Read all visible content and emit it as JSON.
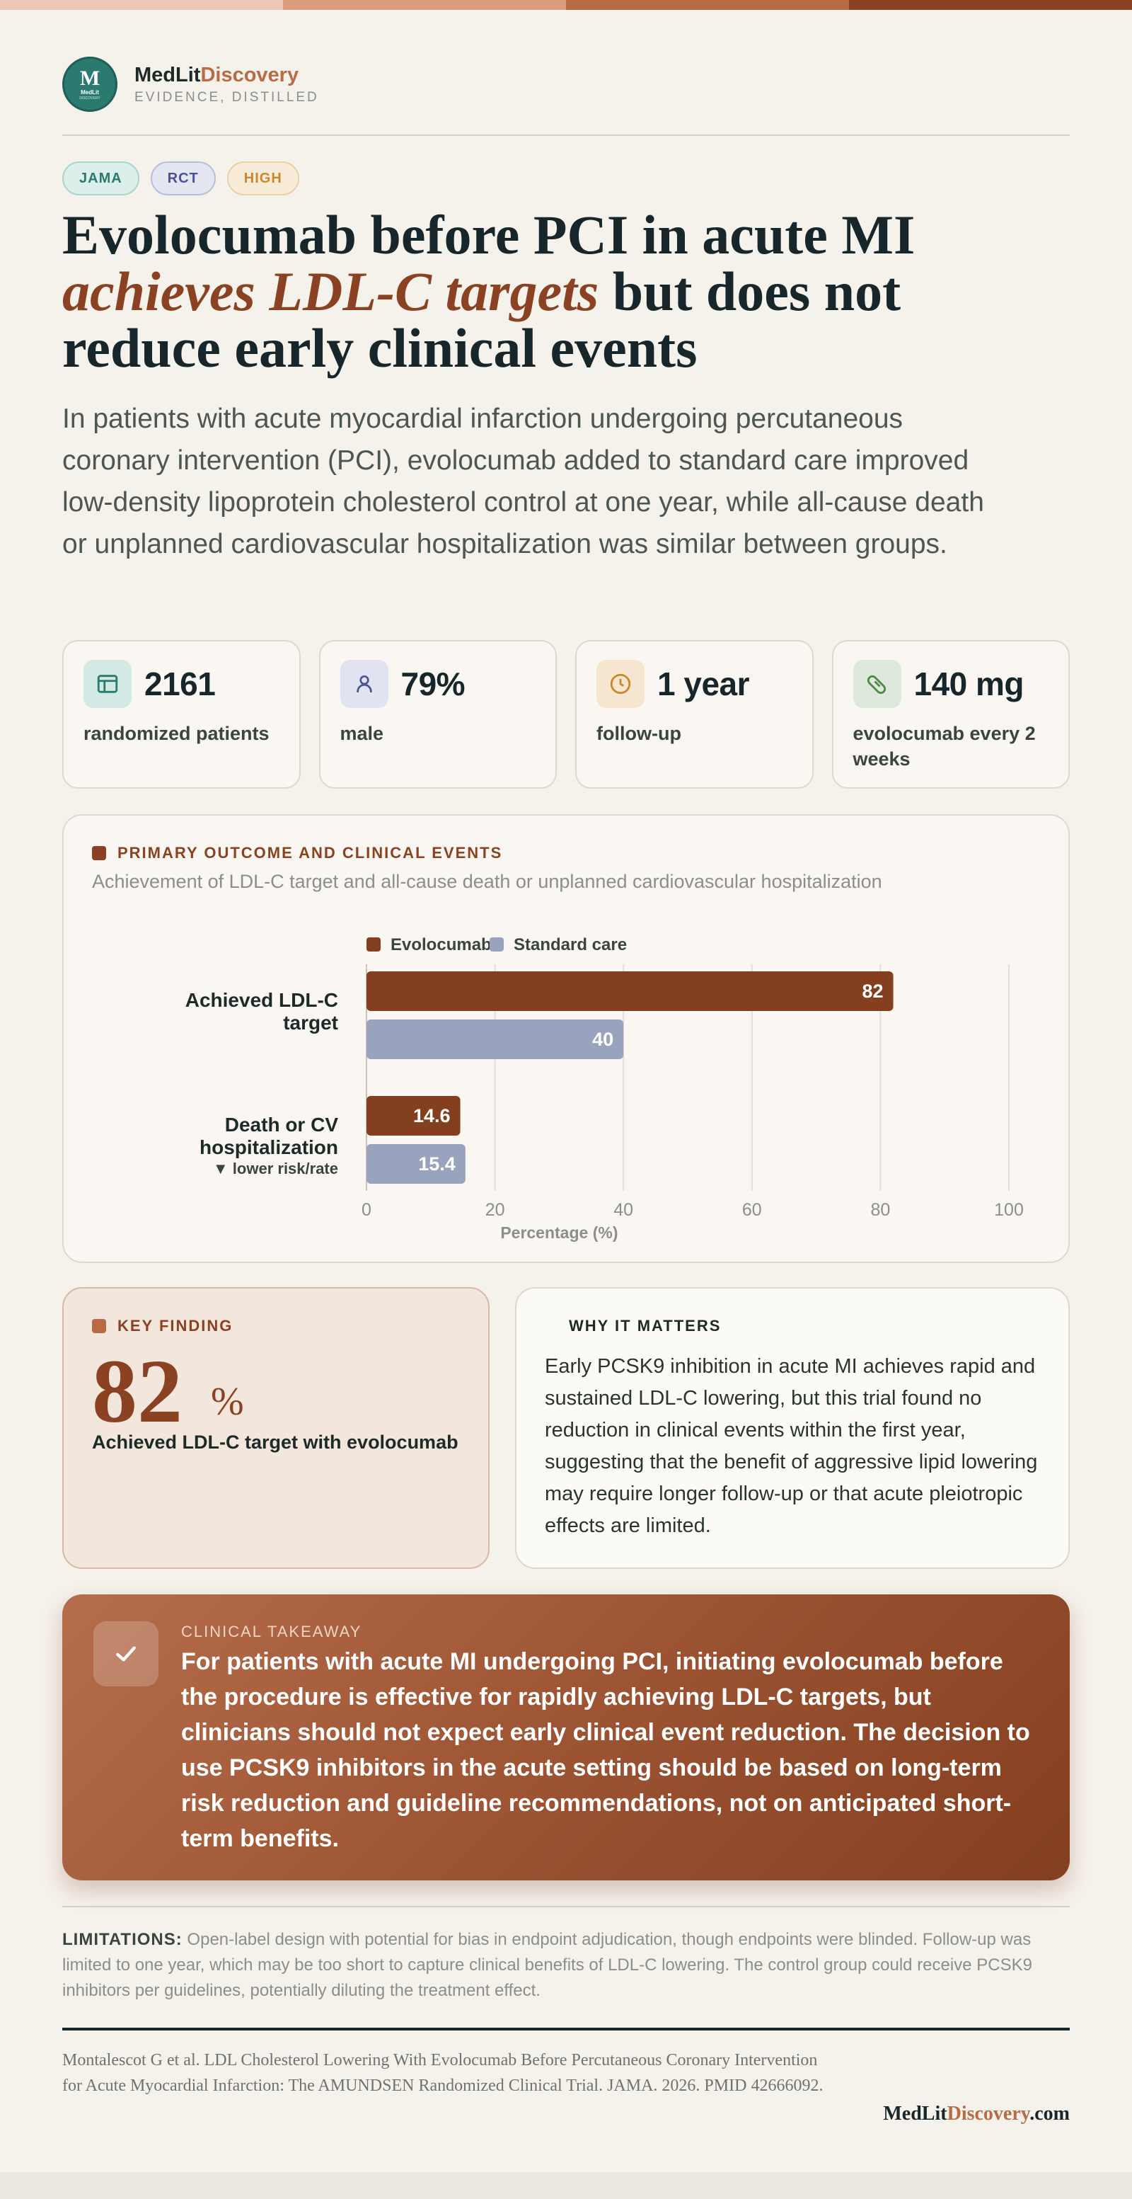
{
  "header": {
    "brand_name_a": "MedLit",
    "brand_name_b": "Discovery",
    "tagline": "EVIDENCE, DISTILLED",
    "logo_letter": "M",
    "logo_small": "MedLit",
    "logo_tiny": "DISCOVERY"
  },
  "colors": {
    "accent": "#8a4222",
    "brand_teal": "#2a7a70",
    "evolocumab": "#843f1f",
    "standard_care": "#9aa3bd",
    "top_bar": [
      "#ecc8b4",
      "#d99d7e",
      "#b86a45",
      "#8a4222"
    ]
  },
  "tags": [
    "JAMA",
    "RCT",
    "HIGH"
  ],
  "headline": {
    "line1": "Evolocumab before PCI in acute MI",
    "emphasis": "achieves LDL-C targets",
    "rest1": " but does not",
    "line3": "reduce early clinical events"
  },
  "lede": "In patients with acute myocardial infarction undergoing percutaneous coronary intervention (PCI), evolocumab added to standard care improved low-density lipoprotein cholesterol control at one year, while all-cause death or unplanned cardiovascular hospitalization was similar between groups.",
  "stats": [
    {
      "icon": "table-icon",
      "value": "2161",
      "label": "randomized patients",
      "icon_bg": "#d3e9e3",
      "icon_color": "#2a7a70"
    },
    {
      "icon": "person-icon",
      "value": "79%",
      "label": "male",
      "icon_bg": "#e1e3f0",
      "icon_color": "#4a5296"
    },
    {
      "icon": "clock-icon",
      "value": "1 year",
      "label": "follow-up",
      "icon_bg": "#f6e5cf",
      "icon_color": "#c9882e"
    },
    {
      "icon": "pill-icon",
      "value": "140 mg",
      "label": "evolocumab every 2 weeks",
      "icon_bg": "#dde9da",
      "icon_color": "#4e8a47"
    }
  ],
  "primary": {
    "title": "PRIMARY OUTCOME AND CLINICAL EVENTS",
    "subtitle": "Achievement of LDL-C target and all-cause death or unplanned cardiovascular hospitalization"
  },
  "chart_data": {
    "type": "bar",
    "orientation": "horizontal",
    "categories": [
      "Achieved LDL-C target",
      "Death or CV hospitalization"
    ],
    "category_notes": [
      "",
      "▼ lower risk/rate"
    ],
    "series": [
      {
        "name": "Evolocumab",
        "values": [
          82,
          14.6
        ]
      },
      {
        "name": "Standard care",
        "values": [
          40,
          15.4
        ]
      }
    ],
    "xlabel": "Percentage (%)",
    "ylabel": "",
    "xlim": [
      0,
      100
    ],
    "xticks": [
      0,
      20,
      40,
      60,
      80,
      100
    ],
    "grid": true,
    "legend": "top-left"
  },
  "key_finding": {
    "title": "KEY FINDING",
    "value": "82",
    "unit": "%",
    "desc": "Achieved LDL-C target with evolocumab"
  },
  "why": {
    "title": "WHY IT MATTERS",
    "text": "Early PCSK9 inhibition in acute MI achieves rapid and sustained LDL-C lowering, but this trial found no reduction in clinical events within the first year, suggesting that the benefit of aggressive lipid lowering may require longer follow-up or that acute pleiotropic effects are limited."
  },
  "takeaway": {
    "title": "CLINICAL TAKEAWAY",
    "icon": "check-icon",
    "text": "For patients with acute MI undergoing PCI, initiating evolocumab before the procedure is effective for rapidly achieving LDL-C targets, but clinicians should not expect early clinical event reduction. The decision to use PCSK9 inhibitors in the acute setting should be based on long-term risk reduction and guideline recommendations, not on anticipated short-term benefits."
  },
  "limitations": {
    "label": "LIMITATIONS:",
    "text": "Open-label design with potential for bias in endpoint adjudication, though endpoints were blinded. Follow-up was limited to one year, which may be too short to capture clinical benefits of LDL-C lowering. The control group could receive PCSK9 inhibitors per guidelines, potentially diluting the treatment effect."
  },
  "citation": "Montalescot G et al. LDL Cholesterol Lowering With Evolocumab Before Percutaneous Coronary Intervention for Acute Myocardial Infarction: The AMUNDSEN Randomized Clinical Trial. JAMA. 2026. PMID 42666092.",
  "footer_brand": {
    "a": "MedLit",
    "b": "Discovery",
    "c": ".com"
  }
}
